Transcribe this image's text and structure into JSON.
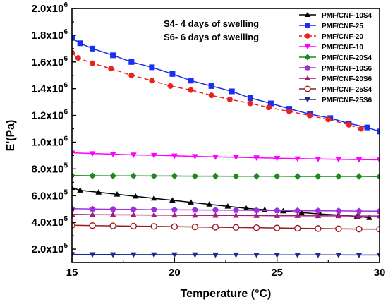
{
  "chart_data": {
    "type": "line",
    "title": "",
    "xlabel": "Temperature (°C)",
    "ylabel": "E'(Pa)",
    "xlim": [
      15,
      30
    ],
    "ylim": [
      100000,
      2000000
    ],
    "x_ticks": [
      15,
      20,
      25,
      30
    ],
    "x_tick_labels": [
      "15",
      "20",
      "25",
      "30"
    ],
    "y_ticks": [
      {
        "value": 200000,
        "mantissa": "2.0x10",
        "exp": "5"
      },
      {
        "value": 400000,
        "mantissa": "4.0x10",
        "exp": "5"
      },
      {
        "value": 600000,
        "mantissa": "6.0x10",
        "exp": "5"
      },
      {
        "value": 800000,
        "mantissa": "8.0x10",
        "exp": "5"
      },
      {
        "value": 1000000,
        "mantissa": "1.0x10",
        "exp": "6"
      },
      {
        "value": 1200000,
        "mantissa": "1.2x10",
        "exp": "6"
      },
      {
        "value": 1400000,
        "mantissa": "1.4x10",
        "exp": "6"
      },
      {
        "value": 1600000,
        "mantissa": "1.6x10",
        "exp": "6"
      },
      {
        "value": 1800000,
        "mantissa": "1.8x10",
        "exp": "6"
      },
      {
        "value": 2000000,
        "mantissa": "2.0x10",
        "exp": "6"
      }
    ],
    "annotations": [
      "S4- 4 days of swelling",
      "S6- 6 days of swelling"
    ],
    "legend_position": "top-right",
    "grid": false,
    "series": [
      {
        "name": "PMF/CNF-10S4",
        "color": "#000000",
        "marker": "triangle-up",
        "dashed": false,
        "x": [
          15,
          15.4,
          16.3,
          17.2,
          18.1,
          19,
          19.9,
          20.8,
          21.7,
          22.6,
          23.5,
          24.4,
          25.3,
          26.2,
          27.1,
          28,
          28.9,
          29.5
        ],
        "y": [
          660000,
          640000,
          625000,
          610000,
          595000,
          580000,
          565000,
          550000,
          535000,
          520000,
          505000,
          495000,
          485000,
          473000,
          463000,
          455000,
          445000,
          435000
        ]
      },
      {
        "name": "PMF/CNF-25",
        "color": "#1a2ff0",
        "marker": "square",
        "dashed": false,
        "x": [
          15,
          15.4,
          16.0,
          17.0,
          17.9,
          18.9,
          19.9,
          20.8,
          21.8,
          22.8,
          23.7,
          24.7,
          25.6,
          26.6,
          27.6,
          28.5,
          29.4,
          30
        ],
        "y": [
          1780000,
          1740000,
          1700000,
          1650000,
          1600000,
          1560000,
          1510000,
          1460000,
          1420000,
          1380000,
          1330000,
          1290000,
          1250000,
          1210000,
          1180000,
          1140000,
          1110000,
          1080000
        ]
      },
      {
        "name": "PMF/CNF-20",
        "color": "#e8231f",
        "marker": "circle",
        "dashed": true,
        "x": [
          15,
          15.3,
          16.0,
          16.9,
          17.9,
          18.9,
          19.8,
          20.8,
          21.8,
          22.7,
          23.7,
          24.6,
          25.6,
          26.6,
          27.5,
          28.5,
          29.1
        ],
        "y": [
          1670000,
          1630000,
          1590000,
          1550000,
          1500000,
          1460000,
          1420000,
          1390000,
          1350000,
          1320000,
          1290000,
          1260000,
          1230000,
          1200000,
          1170000,
          1130000,
          1100000
        ]
      },
      {
        "name": "PMF/CNF-10",
        "color": "#ff00ff",
        "marker": "triangle-down",
        "dashed": false,
        "x": [
          15,
          16.0,
          17.0,
          18.0,
          19.0,
          20.0,
          21.0,
          22.0,
          23.0,
          24.0,
          25.0,
          26.0,
          27.0,
          28.0,
          29.0,
          30
        ],
        "y": [
          920000,
          915000,
          910000,
          905000,
          902000,
          898000,
          894000,
          890000,
          887000,
          884000,
          880000,
          877000,
          874000,
          872000,
          870000,
          868000
        ]
      },
      {
        "name": "PMF/CNF-20S4",
        "color": "#1d8a1d",
        "marker": "diamond",
        "dashed": false,
        "x": [
          15,
          16.0,
          17.0,
          18.0,
          19.0,
          20.0,
          21.0,
          22.0,
          23.0,
          24.0,
          25.0,
          26.0,
          27.0,
          28.0,
          29.0,
          30
        ],
        "y": [
          750000,
          749000,
          748000,
          748000,
          747000,
          747000,
          746000,
          746000,
          745000,
          745000,
          745000,
          744000,
          744000,
          744000,
          744000,
          743000
        ]
      },
      {
        "name": "PMF/CNF-10S6",
        "color": "#9b30e0",
        "marker": "pentagon",
        "dashed": false,
        "x": [
          15,
          16.0,
          17.0,
          18.0,
          19.0,
          20.0,
          21.0,
          22.0,
          23.0,
          24.0,
          25.0,
          26.0,
          27.0,
          28.0,
          29.0,
          30
        ],
        "y": [
          502000,
          500000,
          498000,
          497000,
          495000,
          494000,
          493000,
          492000,
          491000,
          490000,
          489000,
          488000,
          487000,
          486000,
          485000,
          484000
        ]
      },
      {
        "name": "PMF/CNF-20S6",
        "color": "#a01e78",
        "marker": "triangle-up",
        "dashed": false,
        "x": [
          15,
          16.0,
          17.0,
          18.0,
          19.0,
          20.0,
          21.0,
          22.0,
          23.0,
          24.0,
          25.0,
          26.0,
          27.0,
          28.0,
          29.0,
          30
        ],
        "y": [
          460000,
          458000,
          457000,
          456000,
          455000,
          454000,
          453000,
          452000,
          452000,
          451000,
          450000,
          450000,
          449000,
          449000,
          448000,
          448000
        ]
      },
      {
        "name": "PMF/CNF-25S4",
        "color": "#9b1c1c",
        "marker": "circle-open",
        "dashed": false,
        "x": [
          15,
          16.0,
          17.0,
          18.0,
          19.0,
          20.0,
          21.0,
          22.0,
          23.0,
          24.0,
          25.0,
          26.0,
          27.0,
          28.0,
          29.0,
          30
        ],
        "y": [
          378000,
          376000,
          374000,
          372000,
          370000,
          368000,
          366000,
          364000,
          362000,
          360000,
          358000,
          356000,
          354000,
          352000,
          350000,
          349000
        ]
      },
      {
        "name": "PMF/CNF-25S6",
        "color": "#1c2a8c",
        "marker": "triangle-down",
        "dashed": false,
        "x": [
          15,
          16.0,
          17.0,
          18.0,
          19.0,
          20.0,
          21.0,
          22.0,
          23.0,
          24.0,
          25.0,
          26.0,
          27.0,
          28.0,
          29.0,
          30
        ],
        "y": [
          160000,
          159500,
          159000,
          158800,
          158500,
          158300,
          158000,
          157800,
          157500,
          157300,
          157000,
          156800,
          156500,
          156300,
          156000,
          155800
        ]
      }
    ]
  }
}
